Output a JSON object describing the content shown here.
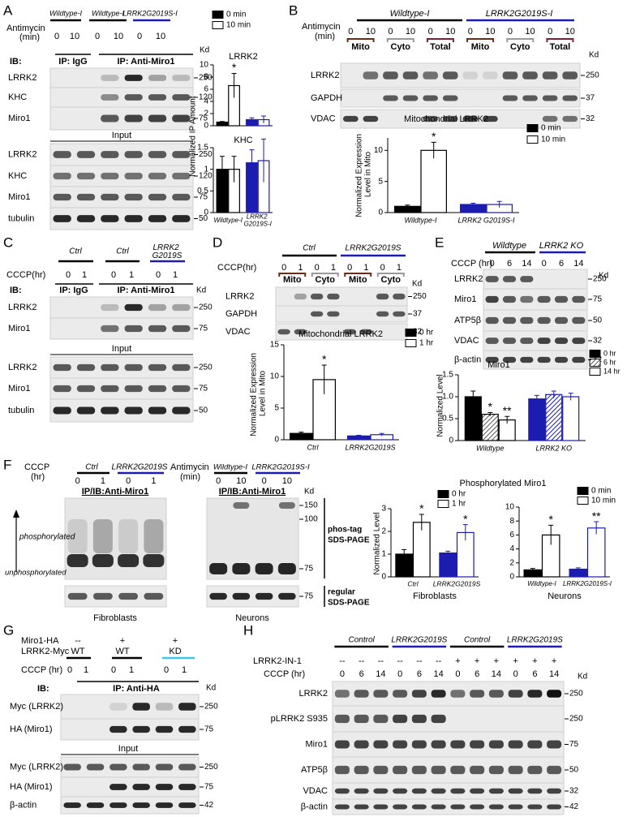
{
  "panels": {
    "A": {
      "letter": "A",
      "groups": [
        "Wildtype-I",
        "Wildtype-I",
        "LRRK2G2019S-I"
      ],
      "treatment": "Antimycin",
      "unit": "(min)",
      "lanes": [
        "0",
        "10",
        "0",
        "10",
        "0",
        "10"
      ],
      "ib": "IB:",
      "ip": [
        "IP: IgG",
        "IP: Anti-Miro1"
      ],
      "kd": "Kd",
      "rows": [
        {
          "label": "LRRK2",
          "kd": "250"
        },
        {
          "label": "KHC",
          "kd": "120"
        },
        {
          "label": "Miro1",
          "kd": "75"
        }
      ],
      "input": "Input",
      "input_rows": [
        {
          "label": "LRRK2",
          "kd": "250"
        },
        {
          "label": "KHC",
          "kd": "120"
        },
        {
          "label": "Miro1",
          "kd": "75"
        },
        {
          "label": "tubulin",
          "kd": "50"
        }
      ]
    },
    "B": {
      "letter": "B",
      "groups": [
        "Wildtype-I",
        "LRRK2G2019S-I"
      ],
      "treatment": "Antimycin",
      "unit": "(min)",
      "lanes": [
        "0",
        "10",
        "0",
        "10",
        "0",
        "10",
        "0",
        "10",
        "0",
        "10",
        "0",
        "10"
      ],
      "fractions": [
        "Mito",
        "Cyto",
        "Total",
        "Mito",
        "Cyto",
        "Total"
      ],
      "kd": "Kd",
      "rows": [
        {
          "label": "LRRK2",
          "kd": "250"
        },
        {
          "label": "GAPDH",
          "kd": "37"
        },
        {
          "label": "VDAC",
          "kd": "32"
        }
      ]
    },
    "C": {
      "letter": "C",
      "groups": [
        "Ctrl",
        "Ctrl",
        "LRRK2 G2019S"
      ],
      "treatment": "CCCP(hr)",
      "lanes": [
        "0",
        "1",
        "0",
        "1",
        "0",
        "1"
      ],
      "ib": "IB:",
      "ip": [
        "IP: IgG",
        "IP: Anti-Miro1"
      ],
      "kd": "Kd",
      "rows": [
        {
          "label": "LRRK2",
          "kd": "250"
        },
        {
          "label": "Miro1",
          "kd": "75"
        }
      ],
      "input": "Input",
      "input_rows": [
        {
          "label": "LRRK2",
          "kd": "250"
        },
        {
          "label": "Miro1",
          "kd": "75"
        },
        {
          "label": "tubulin",
          "kd": "50"
        }
      ]
    },
    "D": {
      "letter": "D",
      "groups": [
        "Ctrl",
        "LRRK2G2019S"
      ],
      "treatment": "CCCP(hr)",
      "lanes": [
        "0",
        "1",
        "0",
        "1",
        "0",
        "1",
        "0",
        "1"
      ],
      "fractions": [
        "Mito",
        "Cyto",
        "Mito",
        "Cyto"
      ],
      "kd": "Kd",
      "rows": [
        {
          "label": "LRRK2",
          "kd": "250"
        },
        {
          "label": "GAPDH",
          "kd": "37"
        },
        {
          "label": "VDAC",
          "kd": "32"
        }
      ]
    },
    "E": {
      "letter": "E",
      "groups": [
        "Wildtype",
        "LRRK2 KO"
      ],
      "treatment": "CCCP (hr)",
      "lanes": [
        "0",
        "6",
        "14",
        "0",
        "6",
        "14"
      ],
      "kd": "Kd",
      "rows": [
        {
          "label": "LRRK2",
          "kd": "250"
        },
        {
          "label": "Miro1",
          "kd": "75"
        },
        {
          "label": "ATP5β",
          "kd": "50"
        },
        {
          "label": "VDAC",
          "kd": "32"
        },
        {
          "label": "β-actin",
          "kd": "42"
        }
      ]
    },
    "F": {
      "letter": "F",
      "fibroblasts": {
        "treatment": "CCCP",
        "unit": "(hr)",
        "groups": [
          "Ctrl",
          "LRRK2G2019S"
        ],
        "lanes": [
          "0",
          "1",
          "0",
          "1"
        ],
        "ip": "IP/IB:Anti-Miro1",
        "phosphorylated": "phosphorylated",
        "unphosphorylated": "unphosphorylated",
        "caption": "Fibroblasts"
      },
      "neurons": {
        "treatment": "Antimycin",
        "unit": "(min)",
        "groups": [
          "Wildtype-I",
          "LRRK2G2019S-I"
        ],
        "lanes": [
          "0",
          "10",
          "0",
          "10"
        ],
        "ip": "IP/IB:Anti-Miro1",
        "kd": "Kd",
        "markers": [
          "150",
          "100",
          "75"
        ],
        "phostag": "phos-tag",
        "sds": "SDS-PAGE",
        "marker_regular": "75",
        "regular": "regular",
        "sds_regular": "SDS-PAGE",
        "caption": "Neurons"
      }
    },
    "G": {
      "letter": "G",
      "conditions": [
        {
          "label": "Miro1-HA",
          "values": [
            "--",
            "+",
            "+"
          ]
        },
        {
          "label": "LRRK2-Myc",
          "values": [
            "WT",
            "WT",
            "KD"
          ]
        }
      ],
      "treatment": "CCCP (hr)",
      "lanes": [
        "0",
        "1",
        "0",
        "1",
        "0",
        "1"
      ],
      "ib": "IB:",
      "ip": "IP: Anti-HA",
      "kd": "Kd",
      "rows": [
        {
          "label": "Myc (LRRK2)",
          "kd": "250"
        },
        {
          "label": "HA (Miro1)",
          "kd": "75"
        }
      ],
      "input": "Input",
      "input_rows": [
        {
          "label": "Myc (LRRK2)",
          "kd": "250"
        },
        {
          "label": "HA (Miro1)",
          "kd": "75"
        },
        {
          "label": "β-actin",
          "kd": "42"
        }
      ]
    },
    "H": {
      "letter": "H",
      "groups": [
        "Control",
        "LRRK2G2019S",
        "Control",
        "LRRK2G2019S"
      ],
      "inhibitor": {
        "label": "LRRK2-IN-1",
        "values": [
          "--",
          "--",
          "--",
          "--",
          "--",
          "--",
          "+",
          "+",
          "+",
          "+",
          "+",
          "+"
        ]
      },
      "treatment": "CCCP (hr)",
      "lanes": [
        "0",
        "6",
        "14",
        "0",
        "6",
        "14",
        "0",
        "6",
        "14",
        "0",
        "6",
        "14"
      ],
      "kd": "Kd",
      "rows": [
        {
          "label": "LRRK2",
          "kd": "250"
        },
        {
          "label": "pLRRK2 S935",
          "kd": "250"
        },
        {
          "label": "Miro1",
          "kd": "75"
        },
        {
          "label": "ATP5β",
          "kd": "50"
        },
        {
          "label": "VDAC",
          "kd": "32"
        },
        {
          "label": "β-actin",
          "kd": "42"
        }
      ]
    }
  },
  "chart_data": [
    {
      "type": "bar",
      "title": "LRRK2",
      "ylabel": "Normalized IP Amount",
      "categories": [
        null,
        null
      ],
      "category_colors": [
        "#000000",
        "#1c1cb0"
      ],
      "series": [
        {
          "name": "0 min",
          "style": "solid",
          "values": [
            0.6,
            1.0
          ],
          "errors": [
            0.1,
            0.3
          ],
          "significance": [
            null,
            null
          ]
        },
        {
          "name": "10 min",
          "style": "open",
          "values": [
            6.6,
            1.0
          ],
          "errors": [
            2.0,
            0.6
          ],
          "significance": [
            "*",
            null
          ]
        }
      ],
      "ylim": [
        0,
        10
      ],
      "yticks": [
        0,
        2,
        4,
        6,
        8,
        10
      ]
    },
    {
      "type": "bar",
      "title": "KHC",
      "categories": [
        "Wildtype-I",
        "LRRK2 G2019S-I"
      ],
      "category_colors": [
        "#000000",
        "#1c1cb0"
      ],
      "series": [
        {
          "style": "solid",
          "values": [
            1.0,
            1.15
          ],
          "errors": [
            0.3,
            0.3
          ],
          "significance": [
            null,
            null
          ]
        },
        {
          "style": "open",
          "values": [
            1.0,
            1.2
          ],
          "errors": [
            0.3,
            0.5
          ],
          "significance": [
            null,
            null
          ]
        }
      ],
      "ylim": [
        0,
        1.5
      ],
      "yticks": [
        0,
        0.5,
        1,
        1.5
      ]
    },
    {
      "type": "bar",
      "title": "Mitochondrial LRRK2",
      "ylabel": "Normalized Expression Level in Mito",
      "categories": [
        "Wildtype-I",
        "LRRK2 G2019S-I"
      ],
      "category_colors": [
        "#000000",
        "#1c1cb0"
      ],
      "series": [
        {
          "name": "0 min",
          "style": "solid",
          "values": [
            1.0,
            1.3
          ],
          "errors": [
            0.2,
            0.2
          ],
          "significance": [
            null,
            null
          ]
        },
        {
          "name": "10 min",
          "style": "open",
          "values": [
            10.0,
            1.3
          ],
          "errors": [
            1.3,
            0.5
          ],
          "significance": [
            "*",
            null
          ]
        }
      ],
      "ylim": [
        0,
        12
      ],
      "yticks": [
        0,
        5,
        10
      ]
    },
    {
      "type": "bar",
      "title": "Mitochondrial LRRK2",
      "ylabel": "Normalized Expression Level in Mito",
      "categories": [
        "Ctrl",
        "LRRK2G2019S"
      ],
      "category_colors": [
        "#000000",
        "#1c1cb0"
      ],
      "series": [
        {
          "name": "0 hr",
          "style": "solid",
          "values": [
            1.0,
            0.6
          ],
          "errors": [
            0.2,
            0.1
          ],
          "significance": [
            null,
            null
          ]
        },
        {
          "name": "1 hr",
          "style": "open",
          "values": [
            9.5,
            0.8
          ],
          "errors": [
            2.3,
            0.2
          ],
          "significance": [
            "*",
            null
          ]
        }
      ],
      "ylim": [
        0,
        15
      ],
      "yticks": [
        0,
        5,
        10,
        15
      ]
    },
    {
      "type": "bar",
      "title": "Miro1",
      "ylabel": "Normalized Level",
      "categories": [
        "Wildtype",
        "LRRK2 KO"
      ],
      "category_colors": [
        "#000000",
        "#1c1cb0"
      ],
      "series": [
        {
          "name": "0 hr",
          "style": "solid",
          "values": [
            1.0,
            0.95
          ],
          "errors": [
            0.13,
            0.08
          ],
          "significance": [
            null,
            null
          ]
        },
        {
          "name": "6 hr",
          "style": "hatched",
          "values": [
            0.6,
            1.05
          ],
          "errors": [
            0.04,
            0.08
          ],
          "significance": [
            "*",
            null
          ]
        },
        {
          "name": "14 hr",
          "style": "open",
          "values": [
            0.47,
            1.0
          ],
          "errors": [
            0.08,
            0.08
          ],
          "significance": [
            "**",
            null
          ]
        }
      ],
      "ylim": [
        0,
        1.5
      ],
      "yticks": [
        0,
        0.5,
        {
          "value": 1,
          "label": "1.0"
        },
        1.5
      ]
    },
    {
      "type": "bar",
      "title": "Phosphorylated Miro1",
      "ylabel": "Normalized Level",
      "xlabel": "Fibroblasts",
      "categories": [
        "Ctrl",
        "LRRK2G2019S"
      ],
      "category_colors": [
        "#000000",
        "#1c1cb0"
      ],
      "series": [
        {
          "name": "0 hr",
          "style": "solid",
          "values": [
            1.0,
            1.05
          ],
          "errors": [
            0.2,
            0.08
          ],
          "significance": [
            null,
            null
          ]
        },
        {
          "name": "1 hr",
          "style": "open",
          "values": [
            2.4,
            1.95
          ],
          "errors": [
            0.35,
            0.35
          ],
          "significance": [
            "*",
            "*"
          ]
        }
      ],
      "ylim": [
        0,
        3
      ],
      "yticks": [
        0,
        1,
        2,
        3
      ]
    },
    {
      "type": "bar",
      "xlabel": "Neurons",
      "categories": [
        "Wildtype-I",
        "LRRK2G2019S-I"
      ],
      "category_colors": [
        "#000000",
        "#1c1cb0"
      ],
      "series": [
        {
          "name": "0 min",
          "style": "solid",
          "values": [
            1.0,
            1.1
          ],
          "errors": [
            0.2,
            0.2
          ],
          "significance": [
            null,
            null
          ]
        },
        {
          "name": "10 min",
          "style": "open",
          "values": [
            6.0,
            7.0
          ],
          "errors": [
            1.4,
            0.9
          ],
          "significance": [
            "*",
            "**"
          ]
        }
      ],
      "ylim": [
        0,
        10
      ],
      "yticks": [
        0,
        2,
        4,
        6,
        8,
        10
      ]
    }
  ]
}
